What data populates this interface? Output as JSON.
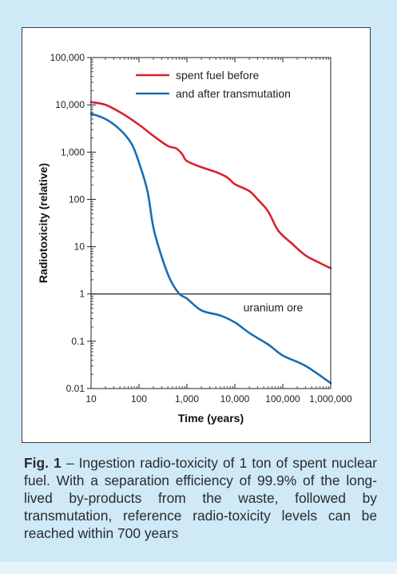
{
  "chart_data": {
    "type": "line",
    "xlabel": "Time (years)",
    "ylabel": "Radiotoxicity (relative)",
    "x_scale": "log",
    "y_scale": "log",
    "xlim": [
      10,
      1000000
    ],
    "ylim": [
      0.01,
      100000
    ],
    "x_ticks": [
      {
        "value": 10,
        "label": "10"
      },
      {
        "value": 100,
        "label": "100"
      },
      {
        "value": 1000,
        "label": "1,000"
      },
      {
        "value": 10000,
        "label": "10,000"
      },
      {
        "value": 100000,
        "label": "100,000"
      },
      {
        "value": 1000000,
        "label": "1,000,000"
      }
    ],
    "y_ticks": [
      {
        "value": 100000,
        "label": "100,000"
      },
      {
        "value": 10000,
        "label": "10,000"
      },
      {
        "value": 1000,
        "label": "1,000"
      },
      {
        "value": 100,
        "label": "100"
      },
      {
        "value": 10,
        "label": "10"
      },
      {
        "value": 1,
        "label": "1"
      },
      {
        "value": 0.1,
        "label": "0.1"
      },
      {
        "value": 0.01,
        "label": "0.01"
      }
    ],
    "legend_position": "top-right",
    "series": [
      {
        "name": "spent fuel before",
        "color": "#d8232f",
        "points": [
          [
            10,
            11500
          ],
          [
            20,
            10000
          ],
          [
            40,
            7000
          ],
          [
            100,
            3800
          ],
          [
            200,
            2200
          ],
          [
            400,
            1350
          ],
          [
            600,
            1200
          ],
          [
            800,
            900
          ],
          [
            1000,
            650
          ],
          [
            2000,
            480
          ],
          [
            4000,
            380
          ],
          [
            7000,
            290
          ],
          [
            10000,
            210
          ],
          [
            20000,
            150
          ],
          [
            30000,
            100
          ],
          [
            50000,
            55
          ],
          [
            80000,
            22
          ],
          [
            150000,
            12
          ],
          [
            300000,
            6.5
          ],
          [
            600000,
            4.5
          ],
          [
            1000000,
            3.5
          ]
        ]
      },
      {
        "name": "and after transmutation",
        "color": "#1a6db5",
        "points": [
          [
            10,
            6500
          ],
          [
            20,
            5000
          ],
          [
            40,
            3000
          ],
          [
            70,
            1500
          ],
          [
            100,
            600
          ],
          [
            150,
            150
          ],
          [
            200,
            25
          ],
          [
            300,
            6
          ],
          [
            450,
            2
          ],
          [
            700,
            1.0
          ],
          [
            1000,
            0.8
          ],
          [
            2000,
            0.45
          ],
          [
            5000,
            0.35
          ],
          [
            10000,
            0.25
          ],
          [
            20000,
            0.15
          ],
          [
            50000,
            0.085
          ],
          [
            100000,
            0.05
          ],
          [
            300000,
            0.03
          ],
          [
            1000000,
            0.013
          ]
        ]
      }
    ],
    "reference_line": {
      "y": 1,
      "label": "uranium ore"
    }
  },
  "caption": {
    "fig_label": "Fig. 1",
    "text": " – Ingestion radio-toxicity of 1 ton of spent nuclear fuel. With a separation efficiency of 99.9% of the long-lived by-products from the waste, followed by transmutation, reference radio-toxicity levels can be reached within 700 years"
  },
  "colors": {
    "background": "#cfe9f7",
    "panel": "#ffffff",
    "axis": "#222222"
  }
}
